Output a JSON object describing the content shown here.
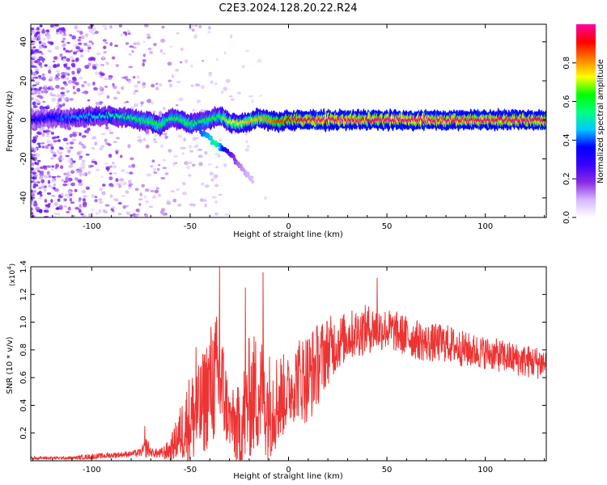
{
  "figure": {
    "title": "C2E3.2024.128.20.22.R24"
  },
  "chart_data": [
    {
      "type": "heatmap",
      "xlabel": "Height of straight line (km)",
      "ylabel": "Frequency (Hz)",
      "xlim": [
        -131,
        131
      ],
      "ylim": [
        -50,
        49
      ],
      "xticks": [
        "-100",
        "-50",
        "0",
        "50",
        "100"
      ],
      "xtick_values": [
        -100,
        -50,
        0,
        50,
        100
      ],
      "yticks": [
        "-40",
        "-20",
        "0",
        "20",
        "40"
      ],
      "ytick_values": [
        -40,
        -20,
        0,
        20,
        40
      ],
      "colorbar": {
        "label": "Normalized spectral amplitude",
        "range": [
          0,
          1
        ],
        "ticks": [
          "0.0",
          "0.2",
          "0.4",
          "0.6",
          "0.8"
        ],
        "tick_values": [
          0.0,
          0.2,
          0.4,
          0.6,
          0.8
        ],
        "colormap": [
          "#ffffff",
          "#d7b7ff",
          "#8a2be2",
          "#3a00ff",
          "#0000ff",
          "#00c8ff",
          "#00ff7f",
          "#00ff00",
          "#ffff00",
          "#ff7f00",
          "#ff0000",
          "#ff00a0"
        ]
      },
      "ridge": {
        "x": [
          -131,
          -120,
          -110,
          -100,
          -90,
          -80,
          -70,
          -65,
          -60,
          -55,
          -50,
          -45,
          -40,
          -35,
          -30,
          -25,
          -20,
          -15,
          -10,
          -5,
          0,
          10,
          20,
          40,
          60,
          80,
          100,
          120,
          131
        ],
        "freq": [
          0,
          1,
          1,
          2,
          2,
          1,
          -1,
          -3,
          1,
          0,
          -2,
          -1,
          0,
          2,
          -1,
          -2,
          -1,
          1,
          0,
          -1,
          0,
          0,
          0,
          0,
          0,
          0,
          0,
          0,
          0
        ],
        "amplitude": [
          0.3,
          0.35,
          0.4,
          0.45,
          0.5,
          0.55,
          0.6,
          0.62,
          0.55,
          0.6,
          0.6,
          0.55,
          0.6,
          0.6,
          0.7,
          0.72,
          0.75,
          0.75,
          0.8,
          0.85,
          0.9,
          0.95,
          0.97,
          0.95,
          0.97,
          0.96,
          0.95,
          0.95,
          0.95
        ]
      },
      "branch": {
        "x": [
          -45,
          -40,
          -37,
          -34,
          -30,
          -26,
          -22,
          -18
        ],
        "freq": [
          -6,
          -9,
          -12,
          -14,
          -17,
          -22,
          -27,
          -31
        ],
        "amplitude": [
          0.4,
          0.45,
          0.55,
          0.4,
          0.25,
          0.15,
          0.1,
          0.08
        ]
      }
    },
    {
      "type": "line",
      "xlabel": "Height of straight line (km)",
      "ylabel": "SNR (10 * v/v)",
      "yscale_label": "(x10",
      "yscale_exponent": "4",
      "yscale_suffix": ")",
      "xlim": [
        -131,
        131
      ],
      "ylim": [
        0,
        1.4
      ],
      "xticks": [
        "-100",
        "-50",
        "0",
        "50",
        "100"
      ],
      "xtick_values": [
        -100,
        -50,
        0,
        50,
        100
      ],
      "yticks": [
        "0.2",
        "0.4",
        "0.6",
        "0.8",
        "1.0",
        "1.2",
        "1.4"
      ],
      "ytick_values": [
        0.2,
        0.4,
        0.6,
        0.8,
        1.0,
        1.2,
        1.4
      ],
      "series": [
        {
          "color": "#ee3333",
          "envelope_x": [
            -131,
            -110,
            -100,
            -90,
            -80,
            -75,
            -72,
            -70,
            -65,
            -60,
            -55,
            -50,
            -45,
            -40,
            -35,
            -30,
            -25,
            -20,
            -15,
            -10,
            -5,
            0,
            5,
            10,
            15,
            20,
            25,
            30,
            40,
            50,
            60,
            70,
            80,
            90,
            100,
            110,
            120,
            131
          ],
          "envelope_mean": [
            0.02,
            0.02,
            0.03,
            0.04,
            0.05,
            0.06,
            0.1,
            0.06,
            0.05,
            0.08,
            0.2,
            0.3,
            0.35,
            0.55,
            0.6,
            0.3,
            0.2,
            0.45,
            0.5,
            0.4,
            0.45,
            0.5,
            0.6,
            0.6,
            0.7,
            0.8,
            0.85,
            0.9,
            0.95,
            0.95,
            0.9,
            0.85,
            0.85,
            0.8,
            0.78,
            0.75,
            0.72,
            0.7
          ],
          "envelope_noise": [
            0.01,
            0.01,
            0.02,
            0.02,
            0.02,
            0.03,
            0.08,
            0.03,
            0.04,
            0.08,
            0.2,
            0.35,
            0.35,
            0.45,
            0.5,
            0.2,
            0.35,
            0.45,
            0.45,
            0.4,
            0.35,
            0.25,
            0.3,
            0.35,
            0.3,
            0.25,
            0.2,
            0.18,
            0.18,
            0.15,
            0.15,
            0.14,
            0.14,
            0.13,
            0.12,
            0.12,
            0.12,
            0.12
          ],
          "peaks": [
            {
              "x": -73,
              "y": 0.25
            },
            {
              "x": -47,
              "y": 0.82
            },
            {
              "x": -35,
              "y": 1.4
            },
            {
              "x": -22,
              "y": 1.25
            },
            {
              "x": -13,
              "y": 1.36
            },
            {
              "x": 45,
              "y": 1.32
            }
          ]
        }
      ]
    }
  ]
}
